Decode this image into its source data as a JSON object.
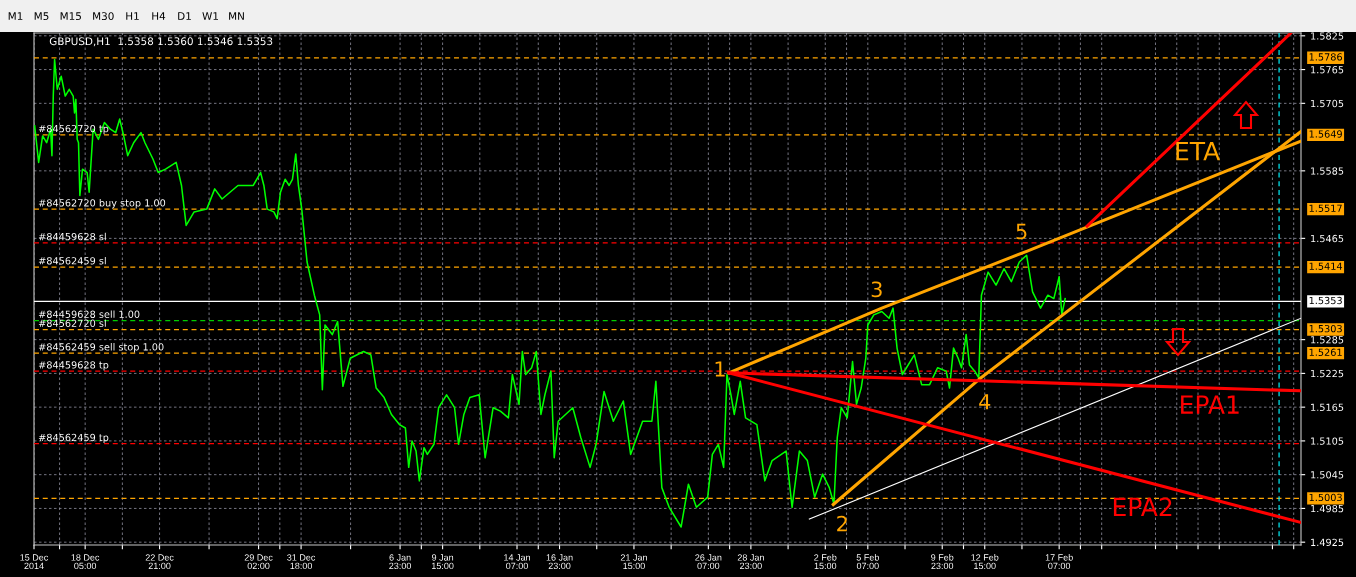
{
  "chart_data": {
    "type": "line",
    "title": "GBPUSD,H1  1.5358 1.5360 1.5346 1.5353",
    "xlim": [
      "2014-12-15",
      "2015-03-04T11:00"
    ],
    "ylim": [
      1.492,
      1.583
    ],
    "xticks": [
      {
        "value": "2014-12-15",
        "label": "15 Dec 2014"
      },
      {
        "value": "2014-12-16T14:30",
        "label": null
      },
      {
        "value": "2014-12-18T05:00",
        "label": "18 Dec 05:00"
      },
      {
        "value": "2014-12-20T13:00",
        "label": null
      },
      {
        "value": "2014-12-22T21:00",
        "label": "22 Dec 21:00"
      },
      {
        "value": "2014-12-25T23:30",
        "label": null
      },
      {
        "value": "2014-12-29T02:00",
        "label": "29 Dec 02:00"
      },
      {
        "value": "2014-12-30T10:00",
        "label": null
      },
      {
        "value": "2014-12-31T18:00",
        "label": "31 Dec 18:00"
      },
      {
        "value": "2015-01-03T20:30",
        "label": null
      },
      {
        "value": "2015-01-06T23:00",
        "label": "6 Jan 23:00"
      },
      {
        "value": "2015-01-08T07:00",
        "label": null
      },
      {
        "value": "2015-01-09T15:00",
        "label": "9 Jan 15:00"
      },
      {
        "value": "2015-01-11T23:00",
        "label": null
      },
      {
        "value": "2015-01-14T07:00",
        "label": "14 Jan 07:00"
      },
      {
        "value": "2015-01-15T15:00",
        "label": null
      },
      {
        "value": "2015-01-16T23:00",
        "label": "16 Jan 23:00"
      },
      {
        "value": "2015-01-19T07:00",
        "label": null
      },
      {
        "value": "2015-01-21T15:00",
        "label": "21 Jan 15:00"
      },
      {
        "value": "2015-01-23T23:00",
        "label": null
      },
      {
        "value": "2015-01-26T07:00",
        "label": "26 Jan 07:00"
      },
      {
        "value": "2015-01-27T15:00",
        "label": null
      },
      {
        "value": "2015-01-28T23:00",
        "label": "28 Jan 23:00"
      },
      {
        "value": "2015-01-31T07:00",
        "label": null
      },
      {
        "value": "2015-02-02T15:00",
        "label": "2 Feb 15:00"
      },
      {
        "value": "2015-02-03T23:00",
        "label": null
      },
      {
        "value": "2015-02-05T07:00",
        "label": "5 Feb 07:00"
      },
      {
        "value": "2015-02-07T15:00",
        "label": null
      },
      {
        "value": "2015-02-09T23:00",
        "label": "9 Feb 23:00"
      },
      {
        "value": "2015-02-11T07:00",
        "label": null
      },
      {
        "value": "2015-02-12T15:00",
        "label": "12 Feb 15:00"
      },
      {
        "value": "2015-02-14T23:00",
        "label": null
      },
      {
        "value": "2015-02-17T07:00",
        "label": "17 Feb 07:00"
      },
      {
        "value": "2015-02-18T15:00",
        "label": null
      },
      {
        "value": "2015-02-19T23:00",
        "label": null
      },
      {
        "value": "2015-02-23T08:00",
        "label": null
      },
      {
        "value": "2015-02-24T16:00",
        "label": null
      },
      {
        "value": "2015-02-26T00:00",
        "label": null
      },
      {
        "value": "2015-02-27T08:00",
        "label": null
      },
      {
        "value": "2015-03-02T16:00",
        "label": null
      },
      {
        "value": "2015-03-04T00:00",
        "label": null
      }
    ],
    "yticks": [
      1.4925,
      1.4985,
      1.5045,
      1.5105,
      1.5165,
      1.5225,
      1.5285,
      1.5465,
      1.5585,
      1.5705,
      1.5765,
      1.5825
    ],
    "grid": true,
    "series": [
      {
        "color": "#00ff00",
        "x": [
          "2014-12-15T01:00",
          "2014-12-15T07:00",
          "2014-12-15T13:00",
          "2014-12-15T19:00",
          "2014-12-16T01:00",
          "2014-12-16T03:00",
          "2014-12-16T05:00",
          "2014-12-16T07:00",
          "2014-12-16T11:00",
          "2014-12-16T17:00",
          "2014-12-16T23:00",
          "2014-12-17T05:00",
          "2014-12-17T11:00",
          "2014-12-17T13:00",
          "2014-12-17T15:00",
          "2014-12-17T17:00",
          "2014-12-17T19:00",
          "2014-12-17T21:00",
          "2014-12-18T01:00",
          "2014-12-18T08:00",
          "2014-12-18T11:00",
          "2014-12-18T17:00",
          "2014-12-19T01:00",
          "2014-12-19T10:00",
          "2014-12-19T19:00",
          "2014-12-20T03:00",
          "2014-12-20T09:00",
          "2014-12-20T15:00",
          "2014-12-20T21:00",
          "2014-12-21T06:00",
          "2014-12-21T17:00",
          "2014-12-21T23:00",
          "2014-12-22T11:00",
          "2014-12-22T19:00",
          "2014-12-23T06:00",
          "2014-12-23T22:00",
          "2014-12-24T06:00",
          "2014-12-24T13:00",
          "2014-12-25T01:00",
          "2014-12-25T20:00",
          "2014-12-26T08:00",
          "2014-12-26T19:00",
          "2014-12-27T19:00",
          "2014-12-28T18:00",
          "2014-12-29T05:00",
          "2014-12-29T10:00",
          "2014-12-29T15:00",
          "2014-12-30T01:00",
          "2014-12-30T06:00",
          "2014-12-30T11:00",
          "2014-12-30T18:00",
          "2014-12-31T00:00",
          "2014-12-31T05:00",
          "2014-12-31T10:00",
          "2014-12-31T14:00",
          "2014-12-31T19:00",
          "2015-01-01T03:00",
          "2015-01-01T14:00",
          "2015-01-01T22:00",
          "2015-01-02T02:00",
          "2015-01-02T06:00",
          "2015-01-02T17:00",
          "2015-01-03T01:00",
          "2015-01-03T09:00",
          "2015-01-03T20:00",
          "2015-01-04T16:00",
          "2015-01-05T03:00",
          "2015-01-05T11:00",
          "2015-01-05T23:00",
          "2015-01-06T10:00",
          "2015-01-06T22:00",
          "2015-01-07T07:00",
          "2015-01-07T12:00",
          "2015-01-07T17:00",
          "2015-01-07T23:00",
          "2015-01-08T04:00",
          "2015-01-08T11:00",
          "2015-01-08T16:00",
          "2015-01-09T02:00",
          "2015-01-09T09:00",
          "2015-01-09T21:00",
          "2015-01-10T09:00",
          "2015-01-10T15:00",
          "2015-01-10T23:00",
          "2015-01-11T08:00",
          "2015-01-11T22:00",
          "2015-01-12T07:00",
          "2015-01-12T19:00",
          "2015-01-13T06:00",
          "2015-01-13T18:00",
          "2015-01-14T00:00",
          "2015-01-14T10:00",
          "2015-01-14T15:00",
          "2015-01-14T20:00",
          "2015-01-15T05:00",
          "2015-01-15T12:00",
          "2015-01-15T19:00",
          "2015-01-16T01:00",
          "2015-01-16T10:00",
          "2015-01-16T15:00",
          "2015-01-16T21:00",
          "2015-01-17T19:00",
          "2015-01-18T07:00",
          "2015-01-18T21:00",
          "2015-01-19T06:00",
          "2015-01-19T18:00",
          "2015-01-20T08:00",
          "2015-01-20T23:00",
          "2015-01-21T10:00",
          "2015-01-22T04:00",
          "2015-01-22T18:00",
          "2015-01-23T00:00",
          "2015-01-23T09:00",
          "2015-01-23T20:00",
          "2015-01-24T14:00",
          "2015-01-25T01:00",
          "2015-01-25T13:00",
          "2015-01-26T06:00",
          "2015-01-26T13:00",
          "2015-01-26T22:00",
          "2015-01-27T06:00",
          "2015-01-27T11:00",
          "2015-01-27T17:00",
          "2015-01-27T22:00",
          "2015-01-28T07:00",
          "2015-01-28T15:00",
          "2015-01-29T08:00",
          "2015-01-29T20:00",
          "2015-01-30T07:00",
          "2015-01-31T04:00",
          "2015-01-31T13:00",
          "2015-02-01T00:00",
          "2015-02-01T12:00",
          "2015-02-01T23:00",
          "2015-02-02T11:00",
          "2015-02-02T21:00",
          "2015-02-03T04:00",
          "2015-02-03T09:00",
          "2015-02-03T15:00",
          "2015-02-04T00:00",
          "2015-02-04T08:00",
          "2015-02-04T14:00",
          "2015-02-04T21:00",
          "2015-02-05T04:00",
          "2015-02-05T07:00",
          "2015-02-05T16:00",
          "2015-02-06T04:00",
          "2015-02-06T15:00",
          "2015-02-06T21:00",
          "2015-02-07T03:00",
          "2015-02-07T11:00",
          "2015-02-08T05:00",
          "2015-02-08T16:00",
          "2015-02-09T04:00",
          "2015-02-09T16:00",
          "2015-02-10T05:00",
          "2015-02-10T10:00",
          "2015-02-10T16:00",
          "2015-02-10T23:00",
          "2015-02-11T04:00",
          "2015-02-11T11:00",
          "2015-02-11T16:00",
          "2015-02-12T00:00",
          "2015-02-12T06:00",
          "2015-02-12T10:00",
          "2015-02-12T20:00",
          "2015-02-13T08:00",
          "2015-02-13T20:00",
          "2015-02-14T07:00",
          "2015-02-14T19:00",
          "2015-02-15T06:00",
          "2015-02-15T15:00",
          "2015-02-16T03:00",
          "2015-02-16T14:00",
          "2015-02-16T23:00",
          "2015-02-17T07:00",
          "2015-02-17T11:00",
          "2015-02-17T16:00"
        ],
        "values": [
          1.5665,
          1.56,
          1.5647,
          1.5635,
          1.5659,
          1.5612,
          1.5718,
          1.5783,
          1.573,
          1.5753,
          1.5718,
          1.573,
          1.5718,
          1.5688,
          1.5712,
          1.5641,
          1.5635,
          1.5541,
          1.5588,
          1.5582,
          1.5547,
          1.5659,
          1.5641,
          1.5671,
          1.5659,
          1.5653,
          1.5677,
          1.5647,
          1.5612,
          1.5635,
          1.5653,
          1.5635,
          1.5606,
          1.5582,
          1.5588,
          1.56,
          1.5559,
          1.5488,
          1.5512,
          1.5517,
          1.5553,
          1.5535,
          1.5559,
          1.5559,
          1.5582,
          1.5559,
          1.5517,
          1.5512,
          1.55,
          1.5547,
          1.557,
          1.5559,
          1.557,
          1.5615,
          1.5559,
          1.5517,
          1.5423,
          1.5364,
          1.5329,
          1.5196,
          1.5311,
          1.5294,
          1.5317,
          1.5202,
          1.5252,
          1.5264,
          1.5258,
          1.5199,
          1.5182,
          1.5152,
          1.5134,
          1.5128,
          1.5058,
          1.5105,
          1.5087,
          1.5034,
          1.5093,
          1.5081,
          1.5099,
          1.5164,
          1.5187,
          1.5164,
          1.5099,
          1.5152,
          1.5182,
          1.5187,
          1.5075,
          1.5164,
          1.5158,
          1.5146,
          1.5223,
          1.517,
          1.5264,
          1.5223,
          1.5235,
          1.5264,
          1.5152,
          1.5187,
          1.5229,
          1.5075,
          1.514,
          1.5164,
          1.5111,
          1.5058,
          1.5099,
          1.5193,
          1.514,
          1.5176,
          1.5081,
          1.514,
          1.514,
          1.5211,
          1.5022,
          1.4987,
          1.4952,
          1.5028,
          1.4987,
          1.5005,
          1.5081,
          1.5099,
          1.5058,
          1.5223,
          1.5187,
          1.5152,
          1.5211,
          1.5146,
          1.5134,
          1.5034,
          1.507,
          1.5087,
          1.4987,
          1.5087,
          1.507,
          1.5005,
          1.5046,
          1.5022,
          1.4993,
          1.5111,
          1.5164,
          1.5146,
          1.5246,
          1.517,
          1.5199,
          1.5252,
          1.5311,
          1.5329,
          1.5335,
          1.5323,
          1.5341,
          1.527,
          1.5223,
          1.5258,
          1.5205,
          1.5205,
          1.5235,
          1.5229,
          1.5199,
          1.527,
          1.5252,
          1.5235,
          1.5294,
          1.524,
          1.5229,
          1.5217,
          1.5364,
          1.5405,
          1.5382,
          1.5411,
          1.5388,
          1.5423,
          1.5435,
          1.537,
          1.5341,
          1.5364,
          1.5358,
          1.5397,
          1.5329,
          1.5358
        ]
      },
      {
        "type": "line",
        "color": "#ffa500",
        "x": [
          "2015-01-27T14:00",
          "2015-02-06T04:00",
          "2015-02-15T06:00",
          "2015-03-04T11:00"
        ],
        "values": [
          1.5226,
          1.5341,
          1.5442,
          1.5638
        ]
      },
      {
        "type": "line",
        "color": "#ffa500",
        "x": [
          "2015-02-03T03:00",
          "2015-02-12T06:00",
          "2015-03-04T11:00"
        ],
        "values": [
          1.4992,
          1.5214,
          1.5655
        ]
      },
      {
        "type": "line",
        "color": "#ff0000",
        "x": [
          "2015-02-19T01:00",
          "2015-03-03T19:00"
        ],
        "values": [
          1.5487,
          1.5829
        ]
      },
      {
        "type": "line",
        "color": "#ff0000",
        "x": [
          "2015-01-27T14:00",
          "2015-03-04T11:00"
        ],
        "values": [
          1.5226,
          1.5194
        ]
      },
      {
        "type": "line",
        "color": "#ff0000",
        "x": [
          "2015-01-27T14:00",
          "2015-03-04T11:00"
        ],
        "values": [
          1.5226,
          1.496
        ]
      },
      {
        "type": "line",
        "color": "#ffffff",
        "x": [
          "2015-02-01T15:00",
          "2015-03-04T11:00"
        ],
        "values": [
          1.4966,
          1.5323
        ]
      }
    ],
    "ref_lines": [
      {
        "axis": "y",
        "value": 1.5786,
        "label": "1.5786",
        "color": "#ffa500",
        "line_style": "dashed"
      },
      {
        "axis": "y",
        "value": 1.5649,
        "label": "1.5649",
        "color": "#ffa500",
        "line_style": "dashed"
      },
      {
        "axis": "y",
        "value": 1.5517,
        "label": "1.5517",
        "color": "#ffa500",
        "line_style": "dashed"
      },
      {
        "axis": "y",
        "value": 1.5457,
        "color": "#ff0000",
        "line_style": "dashed"
      },
      {
        "axis": "y",
        "value": 1.5414,
        "label": "1.5414",
        "color": "#ffa500",
        "line_style": "dashed"
      },
      {
        "axis": "y",
        "value": 1.5353,
        "label": "1.5353",
        "color": "#ffffff",
        "line_style": "solid"
      },
      {
        "axis": "y",
        "value": 1.5319,
        "color": "#00cc00",
        "line_style": "dashed"
      },
      {
        "axis": "y",
        "value": 1.5303,
        "label": "1.5303",
        "color": "#ffa500",
        "line_style": "dashed"
      },
      {
        "axis": "y",
        "value": 1.5261,
        "label": "1.5261",
        "color": "#ffa500",
        "line_style": "dashed"
      },
      {
        "axis": "y",
        "value": 1.5229,
        "color": "#ff0000",
        "line_style": "dashed"
      },
      {
        "axis": "y",
        "value": 1.51,
        "color": "#ff0000",
        "line_style": "dashed"
      },
      {
        "axis": "y",
        "value": 1.5003,
        "label": "1.5003",
        "color": "#ffa500",
        "line_style": "dashed"
      },
      {
        "axis": "x",
        "value": "2015-03-03T02:00",
        "color": "#00e5ee",
        "line_style": "dashed"
      }
    ],
    "annotations": [
      "M1",
      "M5",
      "M15",
      "M30",
      "H1",
      "H4",
      "D1",
      "W1",
      "MN",
      {
        "text": "1",
        "x": "2015-01-27T14:00",
        "y": 1.5226
      },
      {
        "text": "2",
        "x": "2015-02-03T03:00",
        "y": 1.4992
      },
      {
        "text": "3",
        "x": "2015-02-06T04:00",
        "y": 1.5341
      },
      {
        "text": "4",
        "x": "2015-02-12T06:00",
        "y": 1.5214
      },
      {
        "text": "5",
        "x": "2015-02-15T06:00",
        "y": 1.5442
      },
      "ETA",
      "EPA1",
      "EPA2",
      {
        "text": "#84562720 tp",
        "x": "2014-12-15",
        "y": 1.5649
      },
      {
        "text": "#84562720 buy stop 1.00",
        "x": "2014-12-15",
        "y": 1.5517
      },
      {
        "text": "#84459628 sl",
        "x": "2014-12-15",
        "y": 1.5457
      },
      {
        "text": "#84562459 sl",
        "x": "2014-12-15",
        "y": 1.5414
      },
      {
        "text": "#84459628 sell 1.00",
        "x": "2014-12-15",
        "y": 1.5319
      },
      {
        "text": "#84562720 sl",
        "x": "2014-12-15",
        "y": 1.5303
      },
      {
        "text": "#84562459 sell stop 1.00",
        "x": "2014-12-15",
        "y": 1.5261
      },
      {
        "text": "#84459628 tp",
        "x": "2014-12-15",
        "y": 1.5229
      },
      {
        "text": "#84562459 tp",
        "x": "2014-12-15",
        "y": 1.51
      }
    ]
  }
}
